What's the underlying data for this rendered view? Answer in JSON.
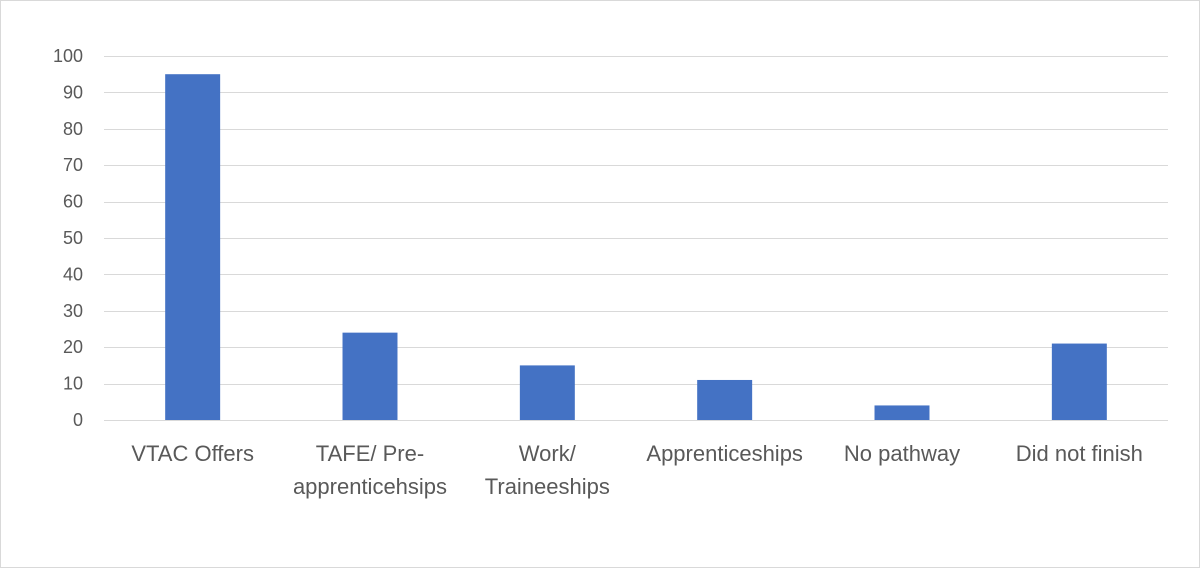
{
  "chart_data": {
    "type": "bar",
    "title": "",
    "xlabel": "",
    "ylabel": "",
    "categories": [
      [
        "VTAC Offers"
      ],
      [
        "TAFE/ Pre-",
        "apprenticehsips"
      ],
      [
        "Work/",
        "Traineeships"
      ],
      [
        "Apprenticeships"
      ],
      [
        "No pathway"
      ],
      [
        "Did not finish"
      ]
    ],
    "values": [
      95,
      24,
      15,
      11,
      4,
      21
    ],
    "ylim": [
      0,
      100
    ],
    "yticks": [
      0,
      10,
      20,
      30,
      40,
      50,
      60,
      70,
      80,
      90,
      100
    ],
    "grid": true,
    "legend": "none",
    "bar_color": "#4472c4",
    "grid_color": "#d9d9d9",
    "text_color": "#595959"
  }
}
